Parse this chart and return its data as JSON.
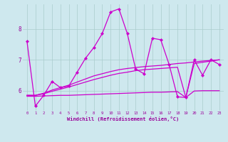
{
  "xlabel": "Windchill (Refroidissement éolien,°C)",
  "background_color": "#cee8ee",
  "grid_color": "#aacccc",
  "line_color": "#cc00cc",
  "xlim": [
    -0.5,
    23.5
  ],
  "ylim": [
    5.35,
    8.8
  ],
  "yticks": [
    6,
    7,
    8
  ],
  "xticks": [
    0,
    1,
    2,
    3,
    4,
    5,
    6,
    7,
    8,
    9,
    10,
    11,
    12,
    13,
    14,
    15,
    16,
    17,
    18,
    19,
    20,
    21,
    22,
    23
  ],
  "series": [
    {
      "y": [
        7.6,
        5.5,
        5.85,
        6.3,
        6.1,
        6.15,
        6.6,
        7.05,
        7.4,
        7.85,
        8.55,
        8.65,
        7.85,
        6.7,
        6.55,
        7.7,
        7.65,
        6.85,
        5.8,
        5.78,
        7.0,
        6.5,
        7.0,
        6.85
      ],
      "marker": true,
      "linewidth": 0.9
    },
    {
      "y": [
        5.85,
        5.85,
        5.92,
        6.02,
        6.1,
        6.18,
        6.28,
        6.38,
        6.48,
        6.55,
        6.62,
        6.68,
        6.72,
        6.75,
        6.78,
        6.8,
        6.82,
        6.85,
        6.88,
        6.9,
        6.93,
        6.96,
        6.98,
        7.0
      ],
      "marker": false,
      "linewidth": 0.9
    },
    {
      "y": [
        5.85,
        5.85,
        5.9,
        5.98,
        6.05,
        6.12,
        6.2,
        6.28,
        6.36,
        6.43,
        6.5,
        6.56,
        6.6,
        6.65,
        6.68,
        6.7,
        6.72,
        6.74,
        6.76,
        5.78,
        6.88,
        6.92,
        6.96,
        7.0
      ],
      "marker": false,
      "linewidth": 0.9
    },
    {
      "y": [
        5.82,
        5.82,
        5.83,
        5.84,
        5.85,
        5.85,
        5.86,
        5.87,
        5.88,
        5.89,
        5.9,
        5.91,
        5.92,
        5.93,
        5.94,
        5.95,
        5.95,
        5.96,
        5.97,
        5.78,
        5.99,
        6.0,
        6.0,
        6.0
      ],
      "marker": false,
      "linewidth": 0.9
    }
  ]
}
